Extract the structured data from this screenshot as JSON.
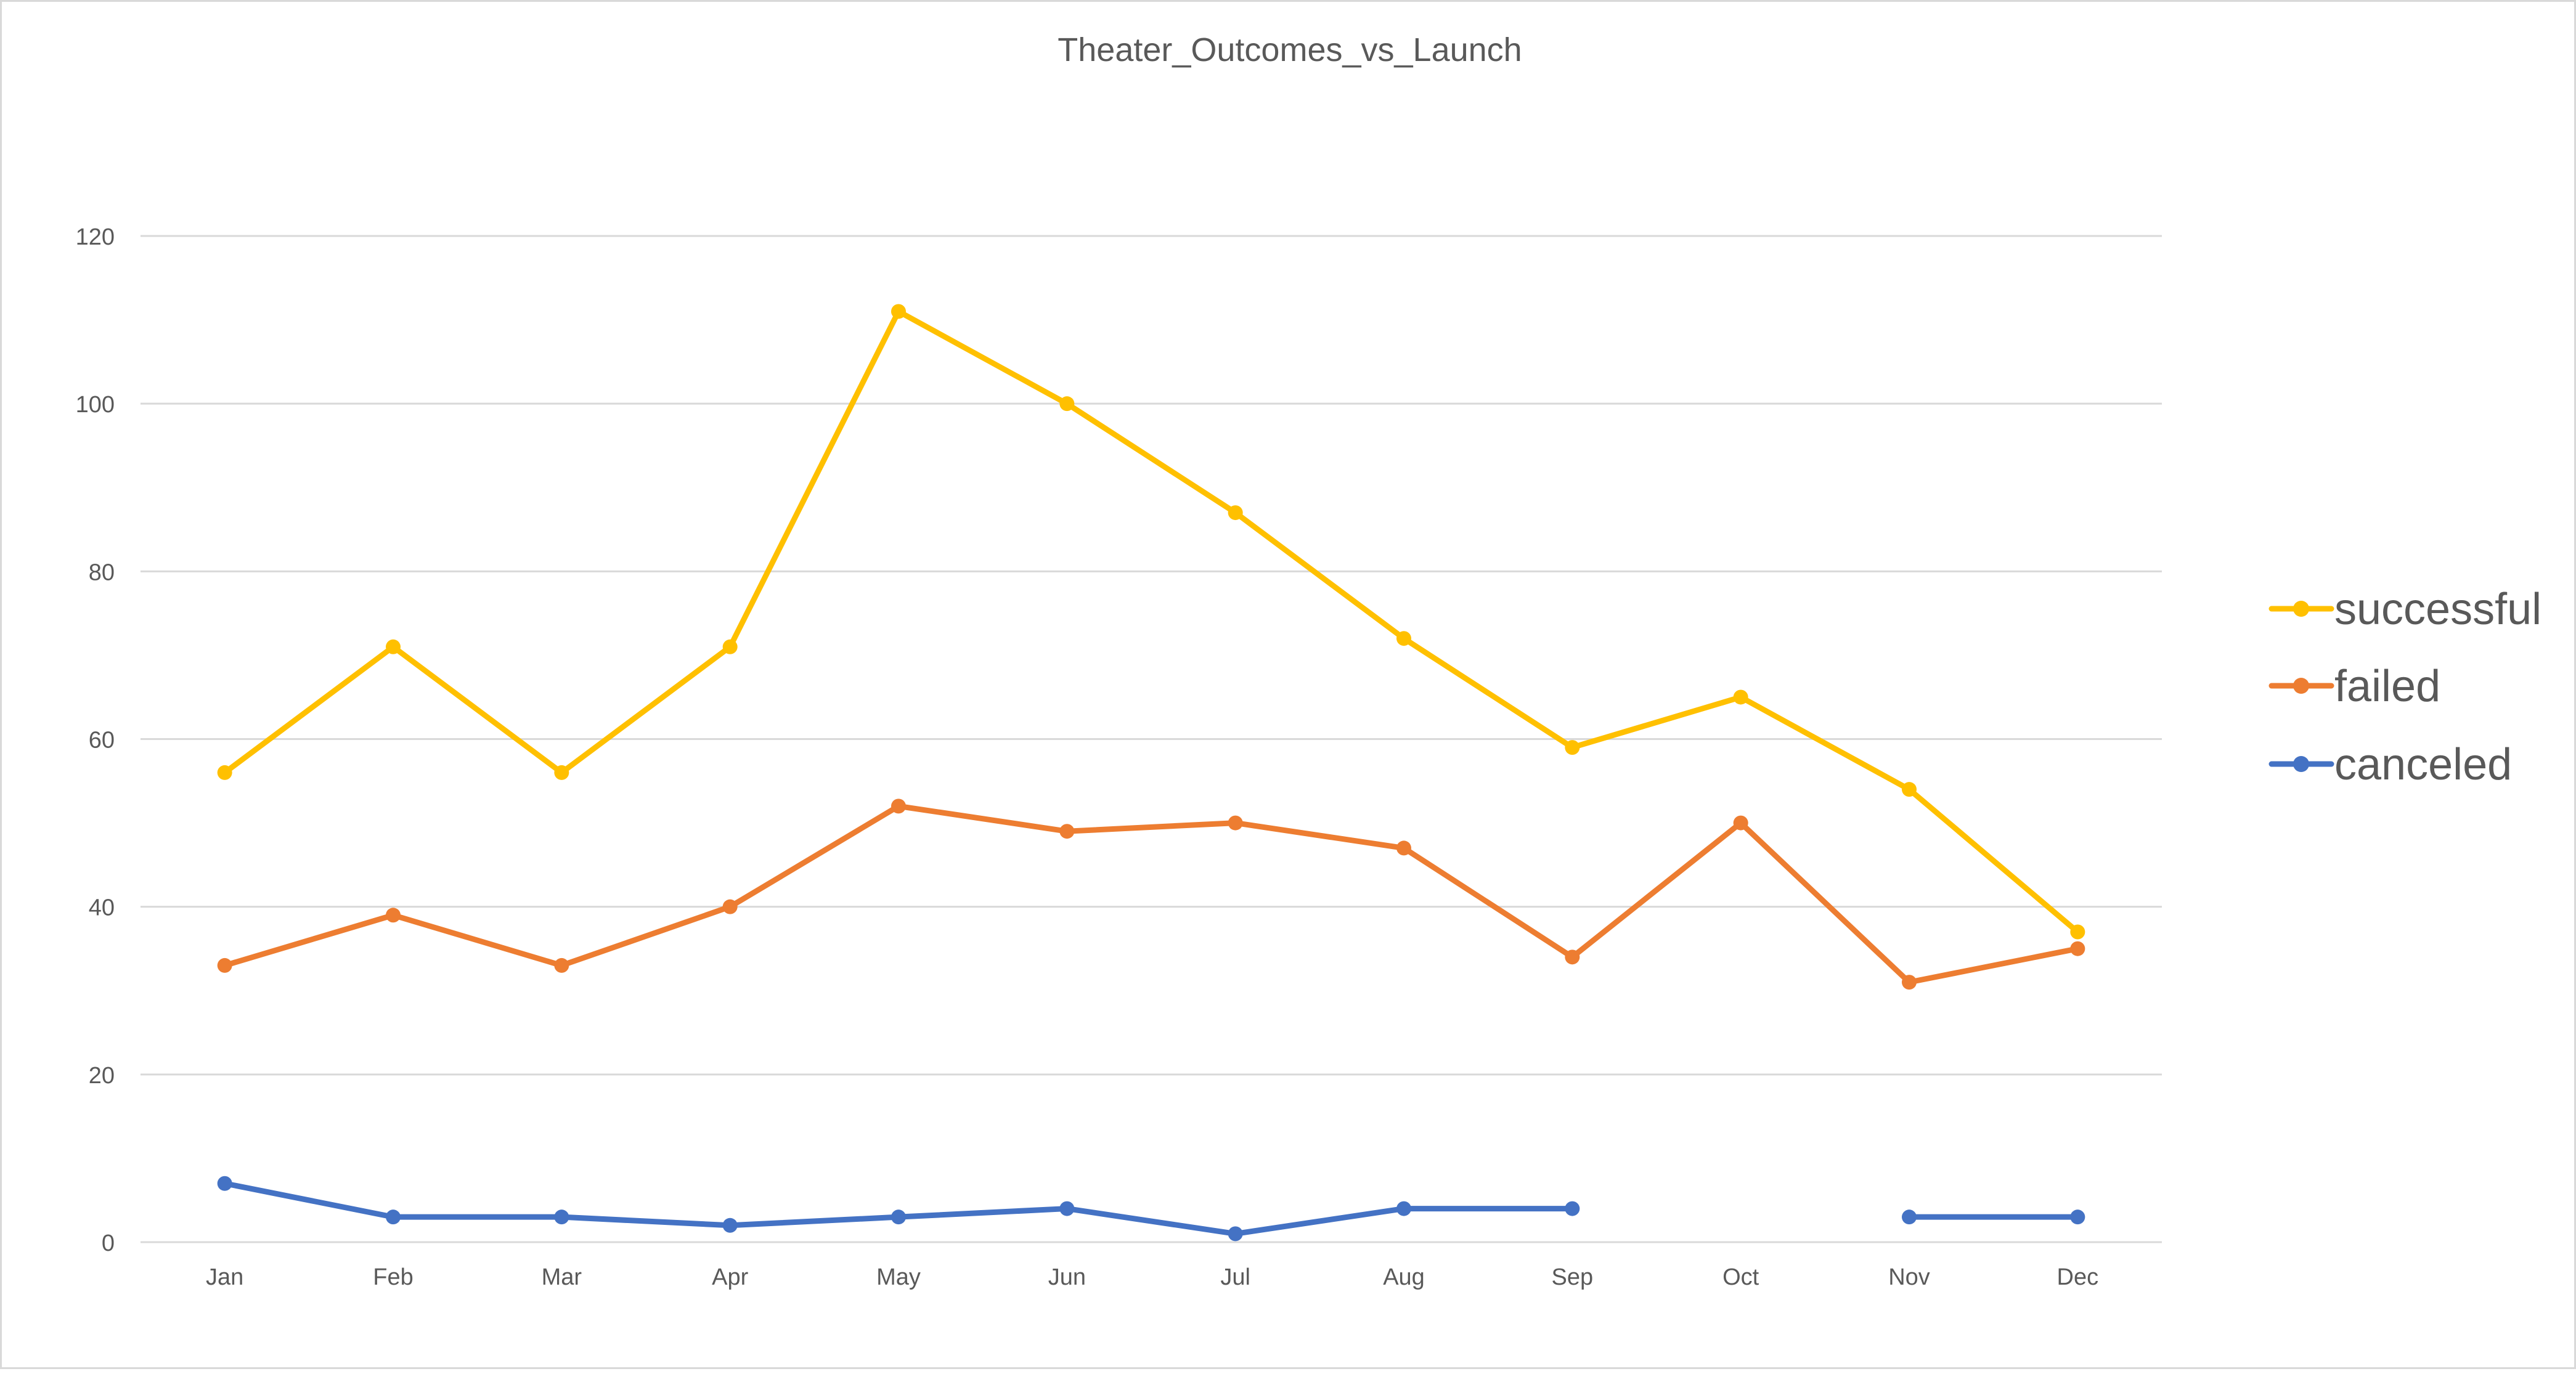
{
  "chart_data": {
    "type": "line",
    "title": "Theater_Outcomes_vs_Launch",
    "xlabel": "",
    "ylabel": "",
    "categories": [
      "Jan",
      "Feb",
      "Mar",
      "Apr",
      "May",
      "Jun",
      "Jul",
      "Aug",
      "Sep",
      "Oct",
      "Nov",
      "Dec"
    ],
    "ylim": [
      0,
      120
    ],
    "yticks": [
      "0",
      "20",
      "40",
      "60",
      "80",
      "100",
      "120"
    ],
    "grid": true,
    "legend_position": "right",
    "series": [
      {
        "name": "successful",
        "color": "#FFC000",
        "values": [
          56,
          71,
          56,
          71,
          111,
          100,
          87,
          72,
          59,
          65,
          54,
          37
        ]
      },
      {
        "name": "failed",
        "color": "#ED7D31",
        "values": [
          33,
          39,
          33,
          40,
          52,
          49,
          50,
          47,
          34,
          50,
          31,
          35
        ]
      },
      {
        "name": "canceled",
        "color": "#4472C4",
        "values": [
          7,
          3,
          3,
          2,
          3,
          4,
          1,
          4,
          4,
          null,
          3,
          3
        ]
      }
    ]
  }
}
